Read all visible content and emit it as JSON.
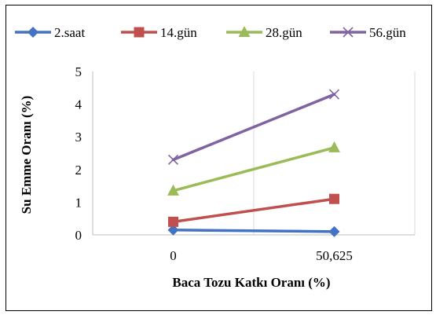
{
  "chart_data": {
    "type": "line",
    "title": "",
    "xlabel": "Baca Tozu Katkı Oranı (%)",
    "ylabel": "Su Emme Oranı (%)",
    "categories": [
      "0",
      "50,625"
    ],
    "ylim": [
      0,
      5
    ],
    "yticks": [
      "0",
      "1",
      "2",
      "3",
      "4",
      "5"
    ],
    "grid": {
      "horizontal": false,
      "vertical": true
    },
    "legend_position": "top",
    "series": [
      {
        "name": "2.saat",
        "values": [
          0.15,
          0.1
        ],
        "color": "#4472C4",
        "marker": "diamond"
      },
      {
        "name": "14.gün",
        "values": [
          0.4,
          1.1
        ],
        "color": "#C0504D",
        "marker": "square"
      },
      {
        "name": "28.gün",
        "values": [
          1.35,
          2.67
        ],
        "color": "#9BBB59",
        "marker": "triangle"
      },
      {
        "name": "56.gün",
        "values": [
          2.3,
          4.3
        ],
        "color": "#8064A2",
        "marker": "x"
      }
    ]
  }
}
